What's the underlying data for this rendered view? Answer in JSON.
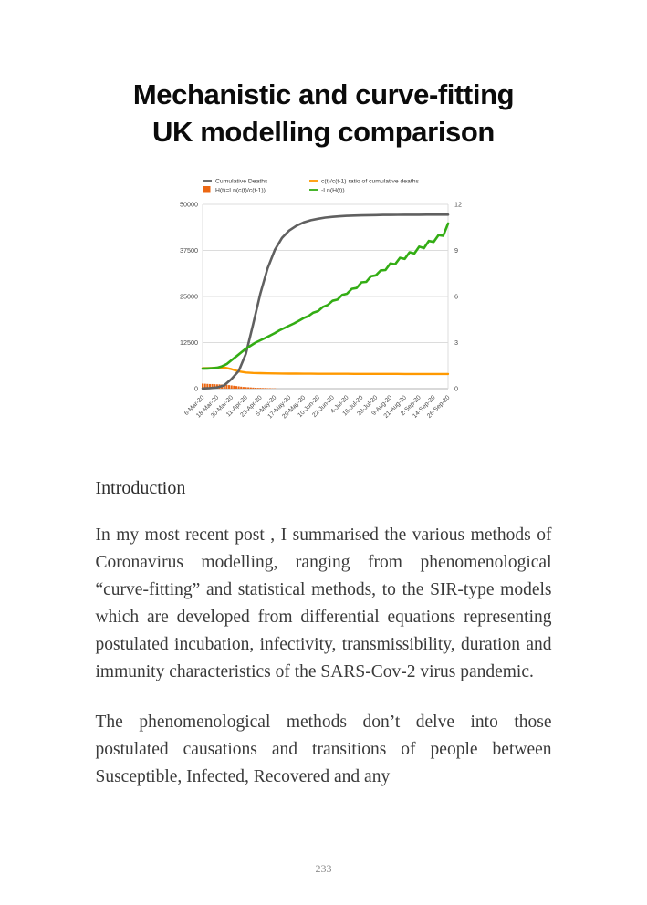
{
  "page": {
    "title_lines": [
      "Mechanistic and curve-fitting",
      "UK modelling comparison"
    ]
  },
  "content": {
    "heading": "Introduction",
    "paragraphs": [
      "In my most recent post , I summarised the various methods of Coronavirus modelling, ranging from phenomenological “curve-fitting” and statistical methods, to the SIR-type models which are developed from differential equations representing postulated incubation, infectivity, transmissibility, duration and immunity characteristics of the SARS-Cov-2 virus pandemic.",
      "The phenomenological methods don’t delve into those postulated causations and transitions of people between Susceptible, Infected, Recovered and any"
    ]
  },
  "footer": {
    "page_number": "233"
  },
  "chart_data": {
    "type": "line",
    "title": "",
    "legend_position": "top",
    "grid": true,
    "x_axis": {
      "tick_labels": [
        "6-Mar-20",
        "18-Mar-20",
        "30-Mar-20",
        "11-Apr-20",
        "23-Apr-20",
        "5-May-20",
        "17-May-20",
        "29-May-20",
        "10-Jun-20",
        "22-Jun-20",
        "4-Jul-20",
        "16-Jul-20",
        "28-Jul-20",
        "9-Aug-20",
        "21-Aug-20",
        "2-Sep-20",
        "14-Sep-20",
        "26-Sep-20"
      ],
      "tick_days": [
        0,
        12,
        24,
        36,
        48,
        60,
        72,
        84,
        96,
        108,
        120,
        132,
        144,
        156,
        168,
        180,
        192,
        204
      ],
      "range_days": [
        0,
        204
      ]
    },
    "left_axis": {
      "ticks": [
        0,
        12500,
        25000,
        37500,
        50000
      ],
      "range": [
        0,
        50000
      ]
    },
    "right_axis": {
      "ticks": [
        0,
        3,
        6,
        9,
        12
      ],
      "range": [
        0,
        12
      ]
    },
    "colors": {
      "deaths": "#606060",
      "h_bars": "#ec6712",
      "ratio": "#ff9900",
      "neg_ln": "#33ad14",
      "grid": "#dcdcdc",
      "axis": "#b3b3b3",
      "tick_text": "#4a4a4a"
    },
    "series": [
      {
        "name": "Cumulative Deaths",
        "axis": "left",
        "type": "line",
        "color": "#606060",
        "width": 2.6,
        "x": [
          0,
          6,
          12,
          18,
          24,
          30,
          36,
          42,
          48,
          54,
          60,
          66,
          72,
          78,
          84,
          90,
          96,
          102,
          108,
          114,
          120,
          126,
          132,
          138,
          144,
          150,
          156,
          162,
          168,
          174,
          180,
          186,
          192,
          198,
          204
        ],
        "y": [
          60,
          140,
          320,
          900,
          2600,
          4800,
          9500,
          17500,
          25800,
          32600,
          37600,
          40900,
          42900,
          44200,
          45100,
          45700,
          46100,
          46400,
          46600,
          46750,
          46870,
          46950,
          47000,
          47050,
          47090,
          47120,
          47140,
          47160,
          47170,
          47180,
          47190,
          47200,
          47200,
          47210,
          47210
        ]
      },
      {
        "name": "H(t)=Ln(c(t)/c(t-1))",
        "axis": "right",
        "type": "bars",
        "color": "#ec6712",
        "x": [
          0,
          2,
          4,
          6,
          8,
          10,
          12,
          14,
          16,
          18,
          20,
          22,
          24,
          26,
          28,
          30,
          32,
          34,
          36,
          38,
          40,
          42,
          44,
          46,
          48,
          50,
          52,
          54,
          56,
          58,
          60
        ],
        "y": [
          0.33,
          0.32,
          0.31,
          0.3,
          0.3,
          0.29,
          0.28,
          0.28,
          0.27,
          0.26,
          0.25,
          0.23,
          0.21,
          0.19,
          0.17,
          0.15,
          0.13,
          0.11,
          0.1,
          0.09,
          0.08,
          0.07,
          0.06,
          0.05,
          0.05,
          0.04,
          0.04,
          0.03,
          0.03,
          0.02,
          0.02
        ]
      },
      {
        "name": "c(t)/c(t-1) ratio of cumulative deaths",
        "axis": "right",
        "type": "line",
        "color": "#ff9900",
        "width": 2.4,
        "x": [
          0,
          6,
          12,
          18,
          24,
          30,
          36,
          42,
          48,
          54,
          60,
          66,
          72,
          78,
          84,
          90,
          96,
          102,
          108,
          114,
          120,
          126,
          132,
          138,
          144,
          150,
          156,
          162,
          168,
          174,
          180,
          186,
          192,
          198,
          204
        ],
        "y": [
          1.33,
          1.34,
          1.36,
          1.38,
          1.27,
          1.12,
          1.05,
          1.02,
          1.01,
          1.0,
          0.99,
          0.985,
          0.98,
          0.978,
          0.975,
          0.973,
          0.971,
          0.97,
          0.968,
          0.967,
          0.966,
          0.965,
          0.964,
          0.963,
          0.962,
          0.961,
          0.96,
          0.96,
          0.959,
          0.958,
          0.958,
          0.957,
          0.957,
          0.956,
          0.956
        ]
      },
      {
        "name": "-Ln(H(t))",
        "axis": "right",
        "type": "line",
        "color": "#33ad14",
        "width": 2.6,
        "x": [
          0,
          4,
          8,
          12,
          16,
          20,
          24,
          28,
          32,
          36,
          40,
          44,
          48,
          52,
          56,
          60,
          64,
          68,
          72,
          76,
          80,
          84,
          88,
          92,
          96,
          100,
          104,
          108,
          112,
          116,
          120,
          124,
          128,
          132,
          136,
          140,
          144,
          148,
          152,
          156,
          160,
          164,
          168,
          172,
          176,
          180,
          184,
          188,
          192,
          196,
          200,
          204
        ],
        "y": [
          1.3,
          1.31,
          1.33,
          1.36,
          1.45,
          1.6,
          1.85,
          2.1,
          2.35,
          2.6,
          2.8,
          3.0,
          3.15,
          3.3,
          3.45,
          3.62,
          3.8,
          3.95,
          4.1,
          4.25,
          4.42,
          4.6,
          4.72,
          4.95,
          5.05,
          5.32,
          5.45,
          5.72,
          5.8,
          6.1,
          6.18,
          6.5,
          6.55,
          6.92,
          6.95,
          7.32,
          7.38,
          7.7,
          7.72,
          8.15,
          8.1,
          8.52,
          8.45,
          8.88,
          8.8,
          9.25,
          9.15,
          9.62,
          9.55,
          10.0,
          9.95,
          10.75
        ]
      }
    ]
  }
}
